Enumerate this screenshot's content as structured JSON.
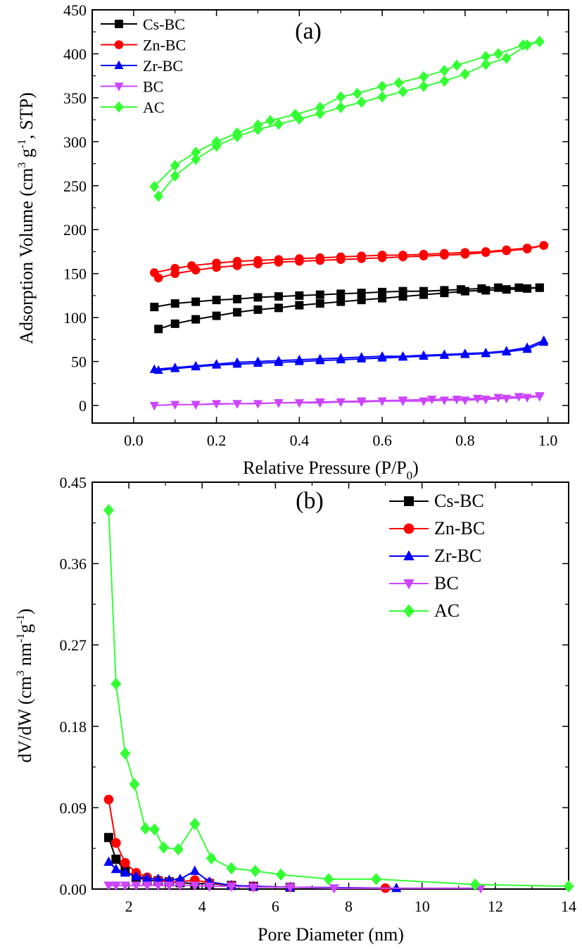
{
  "chart_data": [
    {
      "type": "line",
      "panel_label": "(a)",
      "xlabel": "Relative Pressure (P/P",
      "xlabel_sub": "0",
      "xlabel_end": ")",
      "ylabel": "Adsorption Volume (cm",
      "ylabel_sup1": "3",
      "ylabel_mid": " g",
      "ylabel_sup2": "-1",
      "ylabel_end": ", STP)",
      "xlim": [
        -0.1,
        1.05
      ],
      "ylim": [
        -20,
        450
      ],
      "xticks": [
        0.0,
        0.2,
        0.4,
        0.6,
        0.8,
        1.0
      ],
      "xtick_labels": [
        "0.0",
        "0.2",
        "0.4",
        "0.6",
        "0.8",
        "1.0"
      ],
      "yticks": [
        0,
        50,
        100,
        150,
        200,
        250,
        300,
        350,
        400,
        450
      ],
      "ytick_labels": [
        "0",
        "50",
        "100",
        "150",
        "200",
        "250",
        "300",
        "350",
        "400",
        "450"
      ],
      "legend_position": "top-left",
      "series": [
        {
          "name": "Cs-BC",
          "color": "#000000",
          "marker": "square",
          "adsorption": {
            "x": [
              0.06,
              0.1,
              0.15,
              0.2,
              0.25,
              0.3,
              0.35,
              0.4,
              0.45,
              0.5,
              0.55,
              0.6,
              0.65,
              0.7,
              0.75,
              0.8,
              0.85,
              0.9,
              0.95,
              0.98
            ],
            "y": [
              87,
              93,
              98,
              102,
              106,
              109,
              111,
              114,
              116,
              118,
              120,
              122,
              124,
              126,
              128,
              130,
              131,
              132,
              133,
              134
            ]
          },
          "desorption": {
            "x": [
              0.98,
              0.93,
              0.88,
              0.84,
              0.79,
              0.75,
              0.7,
              0.65,
              0.6,
              0.55,
              0.5,
              0.45,
              0.4,
              0.35,
              0.3,
              0.25,
              0.2,
              0.15,
              0.1,
              0.05
            ],
            "y": [
              134,
              134,
              134,
              133,
              132,
              131,
              130,
              130,
              129,
              128,
              127,
              126,
              125,
              124,
              123,
              121,
              120,
              118,
              116,
              112
            ]
          }
        },
        {
          "name": "Zn-BC",
          "color": "#ff0000",
          "marker": "circle",
          "adsorption": {
            "x": [
              0.06,
              0.1,
              0.15,
              0.2,
              0.25,
              0.3,
              0.35,
              0.4,
              0.45,
              0.5,
              0.55,
              0.6,
              0.65,
              0.7,
              0.75,
              0.8,
              0.85,
              0.9,
              0.95,
              0.99
            ],
            "y": [
              145,
              150,
              154,
              157,
              159,
              161,
              163,
              164,
              165,
              166,
              167,
              168,
              169,
              170,
              171,
              172,
              174,
              176,
              178,
              182
            ]
          },
          "desorption": {
            "x": [
              0.99,
              0.95,
              0.9,
              0.85,
              0.8,
              0.75,
              0.7,
              0.65,
              0.6,
              0.55,
              0.5,
              0.45,
              0.4,
              0.35,
              0.3,
              0.25,
              0.2,
              0.14,
              0.1,
              0.05
            ],
            "y": [
              182,
              179,
              177,
              175,
              174,
              173,
              172,
              171,
              171,
              170,
              169,
              168,
              167,
              166,
              165,
              164,
              162,
              159,
              156,
              151
            ]
          }
        },
        {
          "name": "Zr-BC",
          "color": "#0000ff",
          "marker": "triangle-up",
          "adsorption": {
            "x": [
              0.06,
              0.1,
              0.15,
              0.2,
              0.25,
              0.3,
              0.35,
              0.4,
              0.45,
              0.5,
              0.55,
              0.6,
              0.65,
              0.7,
              0.75,
              0.8,
              0.85,
              0.9,
              0.95,
              0.99
            ],
            "y": [
              40,
              42,
              44,
              46,
              47,
              48,
              49,
              50,
              51,
              52,
              53,
              54,
              55,
              56,
              57,
              58,
              59,
              61,
              64,
              72
            ]
          },
          "desorption": {
            "x": [
              0.99,
              0.95,
              0.9,
              0.85,
              0.8,
              0.75,
              0.7,
              0.65,
              0.6,
              0.55,
              0.5,
              0.45,
              0.4,
              0.35,
              0.3,
              0.25,
              0.2,
              0.15,
              0.1,
              0.05
            ],
            "y": [
              74,
              66,
              62,
              60,
              59,
              58,
              57,
              56,
              56,
              55,
              54,
              53,
              52,
              51,
              50,
              49,
              47,
              45,
              43,
              41
            ]
          }
        },
        {
          "name": "BC",
          "color": "#cc44ff",
          "marker": "triangle-down",
          "adsorption": {
            "x": [
              0.05,
              0.1,
              0.15,
              0.2,
              0.25,
              0.3,
              0.35,
              0.4,
              0.45,
              0.5,
              0.55,
              0.6,
              0.65,
              0.7,
              0.75,
              0.8,
              0.85,
              0.9,
              0.95,
              0.98
            ],
            "y": [
              0,
              1,
              1,
              2,
              2,
              2,
              3,
              3,
              3,
              4,
              4,
              5,
              5,
              5,
              6,
              6,
              7,
              8,
              9,
              10
            ]
          },
          "desorption": {
            "x": [
              0.98,
              0.93,
              0.88,
              0.83,
              0.78,
              0.72,
              0.65,
              0.55,
              0.45,
              0.35,
              0.25,
              0.15
            ],
            "y": [
              11,
              10,
              9,
              8,
              7,
              7,
              6,
              5,
              4,
              3,
              2,
              1
            ]
          }
        },
        {
          "name": "AC",
          "color": "#33ff33",
          "marker": "diamond",
          "adsorption": {
            "x": [
              0.06,
              0.1,
              0.15,
              0.2,
              0.25,
              0.3,
              0.35,
              0.4,
              0.45,
              0.5,
              0.55,
              0.6,
              0.65,
              0.7,
              0.75,
              0.8,
              0.85,
              0.9,
              0.95,
              0.98
            ],
            "y": [
              238,
              261,
              280,
              295,
              306,
              314,
              320,
              326,
              332,
              339,
              345,
              351,
              357,
              363,
              369,
              377,
              388,
              395,
              410,
              414
            ]
          },
          "desorption": {
            "x": [
              0.98,
              0.94,
              0.88,
              0.85,
              0.78,
              0.75,
              0.7,
              0.64,
              0.6,
              0.54,
              0.5,
              0.45,
              0.39,
              0.33,
              0.3,
              0.25,
              0.2,
              0.15,
              0.1,
              0.05
            ],
            "y": [
              414,
              410,
              400,
              397,
              387,
              381,
              374,
              367,
              363,
              355,
              351,
              339,
              331,
              324,
              319,
              310,
              300,
              288,
              273,
              249
            ]
          }
        }
      ]
    },
    {
      "type": "line",
      "panel_label": "(b)",
      "xlabel": "Pore Diameter (nm)",
      "ylabel": "dV/dW (cm",
      "ylabel_sup1": "3",
      "ylabel_mid": " nm",
      "ylabel_sup2": "-1",
      "ylabel_mid2": "g",
      "ylabel_sup3": "-1",
      "ylabel_end": ")",
      "xlim": [
        1,
        14
      ],
      "ylim": [
        0,
        0.45
      ],
      "xticks": [
        2,
        4,
        6,
        8,
        10,
        12,
        14
      ],
      "xtick_labels": [
        "2",
        "4",
        "6",
        "8",
        "10",
        "12",
        "14"
      ],
      "yticks": [
        0.0,
        0.09,
        0.18,
        0.27,
        0.36,
        0.45
      ],
      "ytick_labels": [
        "0.00",
        "0.09",
        "0.18",
        "0.27",
        "0.36",
        "0.45"
      ],
      "legend_position": "top-right",
      "series": [
        {
          "name": "Cs-BC",
          "color": "#000000",
          "marker": "square",
          "x": [
            1.45,
            1.65,
            1.9,
            2.2,
            2.5,
            2.8,
            3.1,
            3.4,
            3.8,
            4.2,
            4.8,
            5.4,
            6.4
          ],
          "y": [
            0.057,
            0.033,
            0.02,
            0.013,
            0.01,
            0.009,
            0.008,
            0.007,
            0.006,
            0.006,
            0.004,
            0.003,
            0.002
          ]
        },
        {
          "name": "Zn-BC",
          "color": "#ff0000",
          "marker": "circle",
          "x": [
            1.45,
            1.65,
            1.9,
            2.2,
            2.5,
            2.8,
            3.1,
            3.4,
            3.8,
            4.2,
            4.8,
            5.4,
            6.4,
            9.0
          ],
          "y": [
            0.099,
            0.051,
            0.029,
            0.018,
            0.013,
            0.01,
            0.008,
            0.008,
            0.01,
            0.007,
            0.004,
            0.003,
            0.002,
            0.001
          ]
        },
        {
          "name": "Zr-BC",
          "color": "#0000ff",
          "marker": "triangle-up",
          "x": [
            1.45,
            1.65,
            1.9,
            2.2,
            2.5,
            2.8,
            3.1,
            3.4,
            3.8,
            4.2,
            4.8,
            5.4,
            6.4,
            9.3
          ],
          "y": [
            0.03,
            0.022,
            0.018,
            0.014,
            0.012,
            0.011,
            0.01,
            0.011,
            0.02,
            0.008,
            0.004,
            0.003,
            0.002,
            0.001
          ]
        },
        {
          "name": "BC",
          "color": "#cc44ff",
          "marker": "triangle-down",
          "x": [
            1.45,
            1.65,
            1.9,
            2.2,
            2.5,
            2.8,
            3.1,
            3.4,
            3.8,
            4.2,
            4.8,
            5.4,
            6.4,
            7.6,
            11.6
          ],
          "y": [
            0.004,
            0.004,
            0.004,
            0.004,
            0.004,
            0.004,
            0.004,
            0.004,
            0.004,
            0.003,
            0.003,
            0.002,
            0.002,
            0.001,
            0.001
          ]
        },
        {
          "name": "AC",
          "color": "#33ff33",
          "marker": "diamond",
          "x": [
            1.45,
            1.65,
            1.9,
            2.15,
            2.45,
            2.7,
            2.95,
            3.35,
            3.8,
            4.25,
            4.8,
            5.45,
            6.15,
            7.45,
            8.75,
            11.45,
            14.0
          ],
          "y": [
            0.419,
            0.227,
            0.15,
            0.116,
            0.067,
            0.066,
            0.046,
            0.044,
            0.072,
            0.034,
            0.023,
            0.02,
            0.016,
            0.011,
            0.011,
            0.005,
            0.003
          ]
        }
      ]
    }
  ]
}
